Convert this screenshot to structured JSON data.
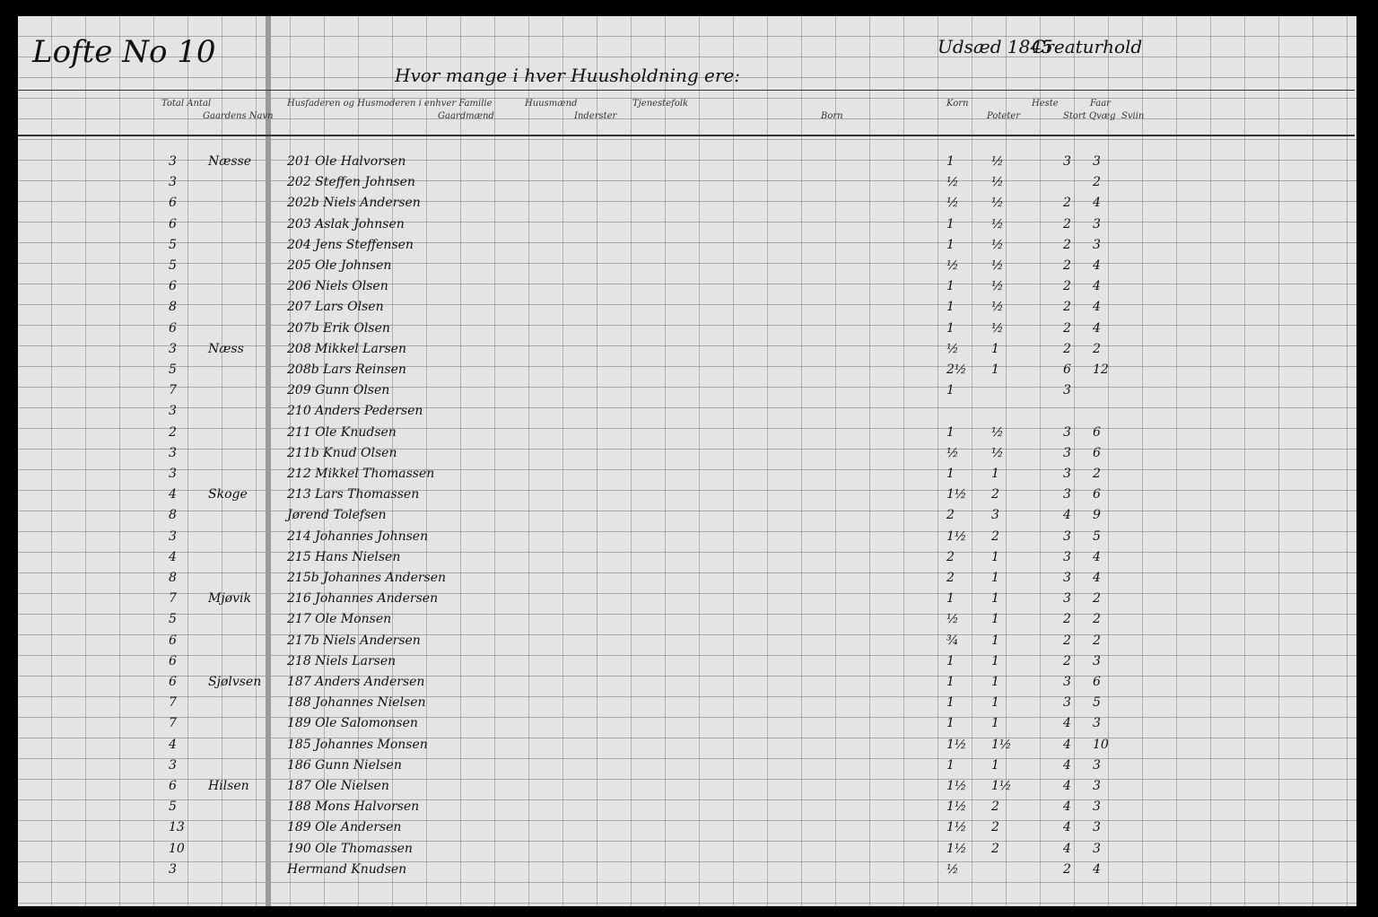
{
  "header": {
    "page_label": "Lofte No 10",
    "household_title": "Hvor mange i hver Huusholdning ere:",
    "sowing_title": "Udsæd 1845",
    "livestock_title": "Creaturhold"
  },
  "columns": [
    "Total Antal",
    "Gaardens Navn",
    "Husfaderen og Husmoderen i enhver Familie",
    "Gaardmænd",
    "Huusmænd",
    "Inderster",
    "Tjenestefolk",
    "Born",
    "Korn",
    "Poteter",
    "Heste",
    "Stort Qvæg",
    "Faar",
    "Sviin"
  ],
  "rows": [
    {
      "total": "3",
      "farm": "Næsse",
      "name": "201 Ole Halvorsen",
      "seed": [
        "1",
        "½"
      ],
      "stock": [
        null,
        "3",
        "3"
      ]
    },
    {
      "total": "3",
      "name": "202 Steffen Johnsen",
      "seed": [
        "½",
        "½"
      ],
      "stock": [
        null,
        null,
        "2"
      ]
    },
    {
      "total": "6",
      "name": "202b Niels Andersen",
      "seed": [
        "½",
        "½"
      ],
      "stock": [
        null,
        "2",
        "4"
      ]
    },
    {
      "total": "6",
      "name": "203 Aslak Johnsen",
      "seed": [
        "1",
        "½"
      ],
      "stock": [
        null,
        "2",
        "3"
      ]
    },
    {
      "total": "5",
      "name": "204 Jens Steffensen",
      "seed": [
        "1",
        "½"
      ],
      "stock": [
        null,
        "2",
        "3"
      ]
    },
    {
      "total": "5",
      "name": "205 Ole Johnsen",
      "seed": [
        "½",
        "½"
      ],
      "stock": [
        null,
        "2",
        "4"
      ]
    },
    {
      "total": "6",
      "name": "206 Niels Olsen",
      "seed": [
        "1",
        "½"
      ],
      "stock": [
        null,
        "2",
        "4"
      ]
    },
    {
      "total": "8",
      "name": "207 Lars Olsen",
      "seed": [
        "1",
        "½"
      ],
      "stock": [
        null,
        "2",
        "4"
      ]
    },
    {
      "total": "6",
      "name": "207b Erik Olsen",
      "seed": [
        "1",
        "½"
      ],
      "stock": [
        null,
        "2",
        "4"
      ]
    },
    {
      "total": "3",
      "farm": "Næss",
      "name": "208 Mikkel Larsen",
      "seed": [
        "½",
        "1"
      ],
      "stock": [
        null,
        "2",
        "2"
      ]
    },
    {
      "total": "5",
      "name": "208b Lars Reinsen",
      "seed": [
        "2½",
        "1"
      ],
      "stock": [
        null,
        "6",
        "12"
      ]
    },
    {
      "total": "7",
      "name": "209 Gunn Olsen",
      "seed": [
        "1",
        null
      ],
      "stock": [
        null,
        "3",
        null
      ]
    },
    {
      "total": "3",
      "name": "210 Anders Pedersen",
      "seed": [
        null,
        null
      ],
      "stock": [
        null,
        null,
        null
      ]
    },
    {
      "total": "2",
      "name": "211 Ole Knudsen",
      "seed": [
        "1",
        "½"
      ],
      "stock": [
        null,
        "3",
        "6"
      ]
    },
    {
      "total": "3",
      "name": "211b Knud Olsen",
      "seed": [
        "½",
        "½"
      ],
      "stock": [
        null,
        "3",
        "6"
      ]
    },
    {
      "total": "3",
      "name": "212 Mikkel Thomassen",
      "seed": [
        "1",
        "1"
      ],
      "stock": [
        null,
        "3",
        "2"
      ]
    },
    {
      "total": "4",
      "farm": "Skoge",
      "name": "213 Lars Thomassen",
      "seed": [
        "1½",
        "2"
      ],
      "stock": [
        null,
        "3",
        "6"
      ]
    },
    {
      "total": "8",
      "name": "Jørend Tolefsen",
      "seed": [
        "2",
        "3"
      ],
      "stock": [
        null,
        "4",
        "9"
      ]
    },
    {
      "total": "3",
      "name": "214 Johannes Johnsen",
      "seed": [
        "1½",
        "2"
      ],
      "stock": [
        null,
        "3",
        "5"
      ]
    },
    {
      "total": "4",
      "name": "215 Hans Nielsen",
      "seed": [
        "2",
        "1"
      ],
      "stock": [
        null,
        "3",
        "4"
      ]
    },
    {
      "total": "8",
      "name": "215b Johannes Andersen",
      "seed": [
        "2",
        "1"
      ],
      "stock": [
        null,
        "3",
        "4"
      ]
    },
    {
      "total": "7",
      "farm": "Mjøvik",
      "name": "216 Johannes Andersen",
      "seed": [
        "1",
        "1"
      ],
      "stock": [
        null,
        "3",
        "2"
      ]
    },
    {
      "total": "5",
      "name": "217 Ole Monsen",
      "seed": [
        "½",
        "1"
      ],
      "stock": [
        null,
        "2",
        "2"
      ]
    },
    {
      "total": "6",
      "name": "217b Niels Andersen",
      "seed": [
        "¾",
        "1"
      ],
      "stock": [
        null,
        "2",
        "2"
      ]
    },
    {
      "total": "6",
      "name": "218 Niels Larsen",
      "seed": [
        "1",
        "1"
      ],
      "stock": [
        null,
        "2",
        "3"
      ]
    },
    {
      "total": "6",
      "farm": "Sjølvsen",
      "name": "187 Anders Andersen",
      "seed": [
        "1",
        "1"
      ],
      "stock": [
        null,
        "3",
        "6"
      ]
    },
    {
      "total": "7",
      "name": "188 Johannes Nielsen",
      "seed": [
        "1",
        "1"
      ],
      "stock": [
        null,
        "3",
        "5"
      ]
    },
    {
      "total": "7",
      "name": "189 Ole Salomonsen",
      "seed": [
        "1",
        "1"
      ],
      "stock": [
        null,
        "4",
        "3"
      ]
    },
    {
      "total": "4",
      "name": "185 Johannes Monsen",
      "seed": [
        "1½",
        "1½"
      ],
      "stock": [
        null,
        "4",
        "10"
      ]
    },
    {
      "total": "3",
      "name": "186 Gunn Nielsen",
      "seed": [
        "1",
        "1"
      ],
      "stock": [
        null,
        "4",
        "3"
      ]
    },
    {
      "total": "6",
      "farm": "Hilsen",
      "name": "187 Ole Nielsen",
      "seed": [
        "1½",
        "1½"
      ],
      "stock": [
        null,
        "4",
        "3"
      ]
    },
    {
      "total": "5",
      "name": "188 Mons Halvorsen",
      "seed": [
        "1½",
        "2"
      ],
      "stock": [
        null,
        "4",
        "3"
      ]
    },
    {
      "total": "13",
      "name": "189 Ole Andersen",
      "seed": [
        "1½",
        "2"
      ],
      "stock": [
        null,
        "4",
        "3"
      ]
    },
    {
      "total": "10",
      "name": "190 Ole Thomassen",
      "seed": [
        "1½",
        "2"
      ],
      "stock": [
        null,
        "4",
        "3"
      ]
    },
    {
      "total": "3",
      "name": "Hermand Knudsen",
      "seed": [
        "½",
        null
      ],
      "stock": [
        null,
        "2",
        "4"
      ]
    }
  ]
}
